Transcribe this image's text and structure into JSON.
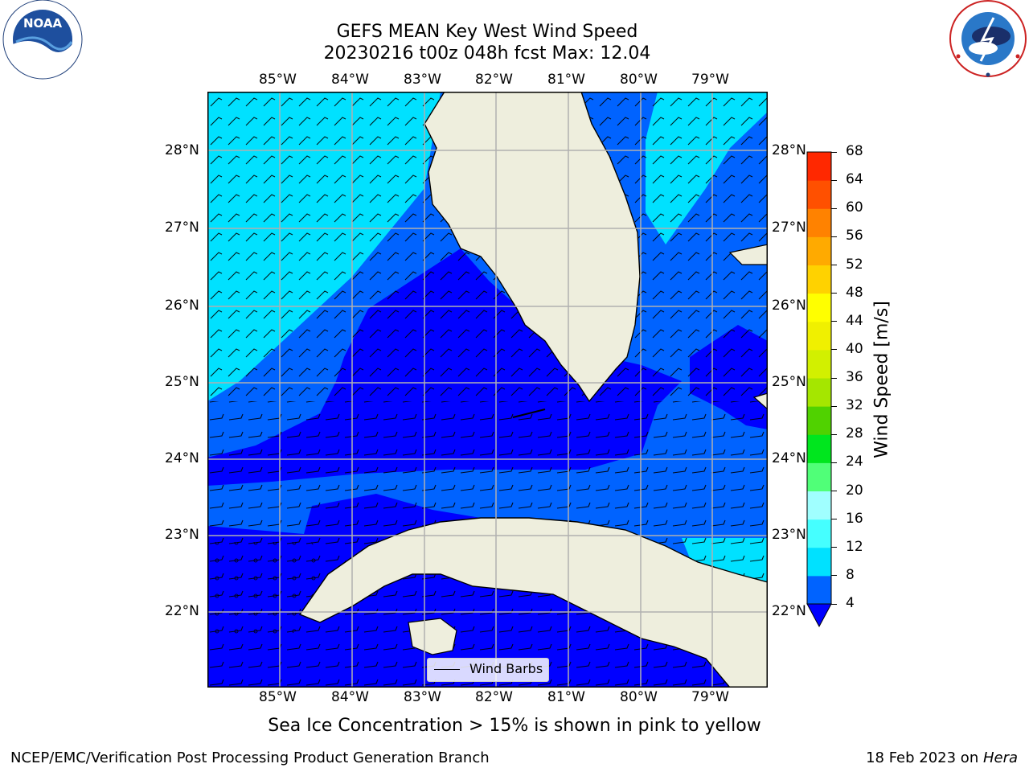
{
  "title": {
    "line1": "GEFS MEAN Key West Wind Speed",
    "line2": "20230216 t00z 048h fcst   Max: 12.04"
  },
  "logos": {
    "noaa_text": "NOAA",
    "noaa_ring": "NATIONAL OCEANIC AND ATMOSPHERIC ADMINISTRATION · U.S. DEPARTMENT OF COMMERCE",
    "nws_ring": "NATIONAL WEATHER SERVICE"
  },
  "map": {
    "lon_labels": [
      "85°W",
      "84°W",
      "83°W",
      "82°W",
      "81°W",
      "80°W",
      "79°W"
    ],
    "lat_labels": [
      "28°N",
      "27°N",
      "26°N",
      "25°N",
      "24°N",
      "23°N",
      "22°N"
    ],
    "legend_label": "Wind Barbs"
  },
  "colorbar": {
    "label": "Wind Speed [m/s]",
    "ticks": [
      "4",
      "8",
      "12",
      "16",
      "20",
      "24",
      "28",
      "32",
      "36",
      "40",
      "44",
      "48",
      "52",
      "56",
      "60",
      "64",
      "68"
    ],
    "colors": [
      "#0063ff",
      "#00e1ff",
      "#45ffff",
      "#a0ffff",
      "#50ff78",
      "#00e61e",
      "#50d200",
      "#a5e600",
      "#d2f000",
      "#f0f000",
      "#ffff00",
      "#ffd200",
      "#ffaa00",
      "#ff8200",
      "#ff5000",
      "#ff2800",
      "#ff0000"
    ],
    "under_color": "#0000ff"
  },
  "bottom_note": "Sea Ice Concentration > 15% is shown in pink to yellow",
  "footer": {
    "left": "NCEP/EMC/Verification Post Processing Product Generation Branch",
    "date": "18 Feb 2023 on ",
    "machine": "Hera"
  },
  "colors": {
    "speed_4_8": "#0063ff",
    "speed_8_12": "#00e1ff",
    "speed_lt4": "#0000ff",
    "land": "#eeeedd",
    "grid": "#b0b0b0"
  }
}
